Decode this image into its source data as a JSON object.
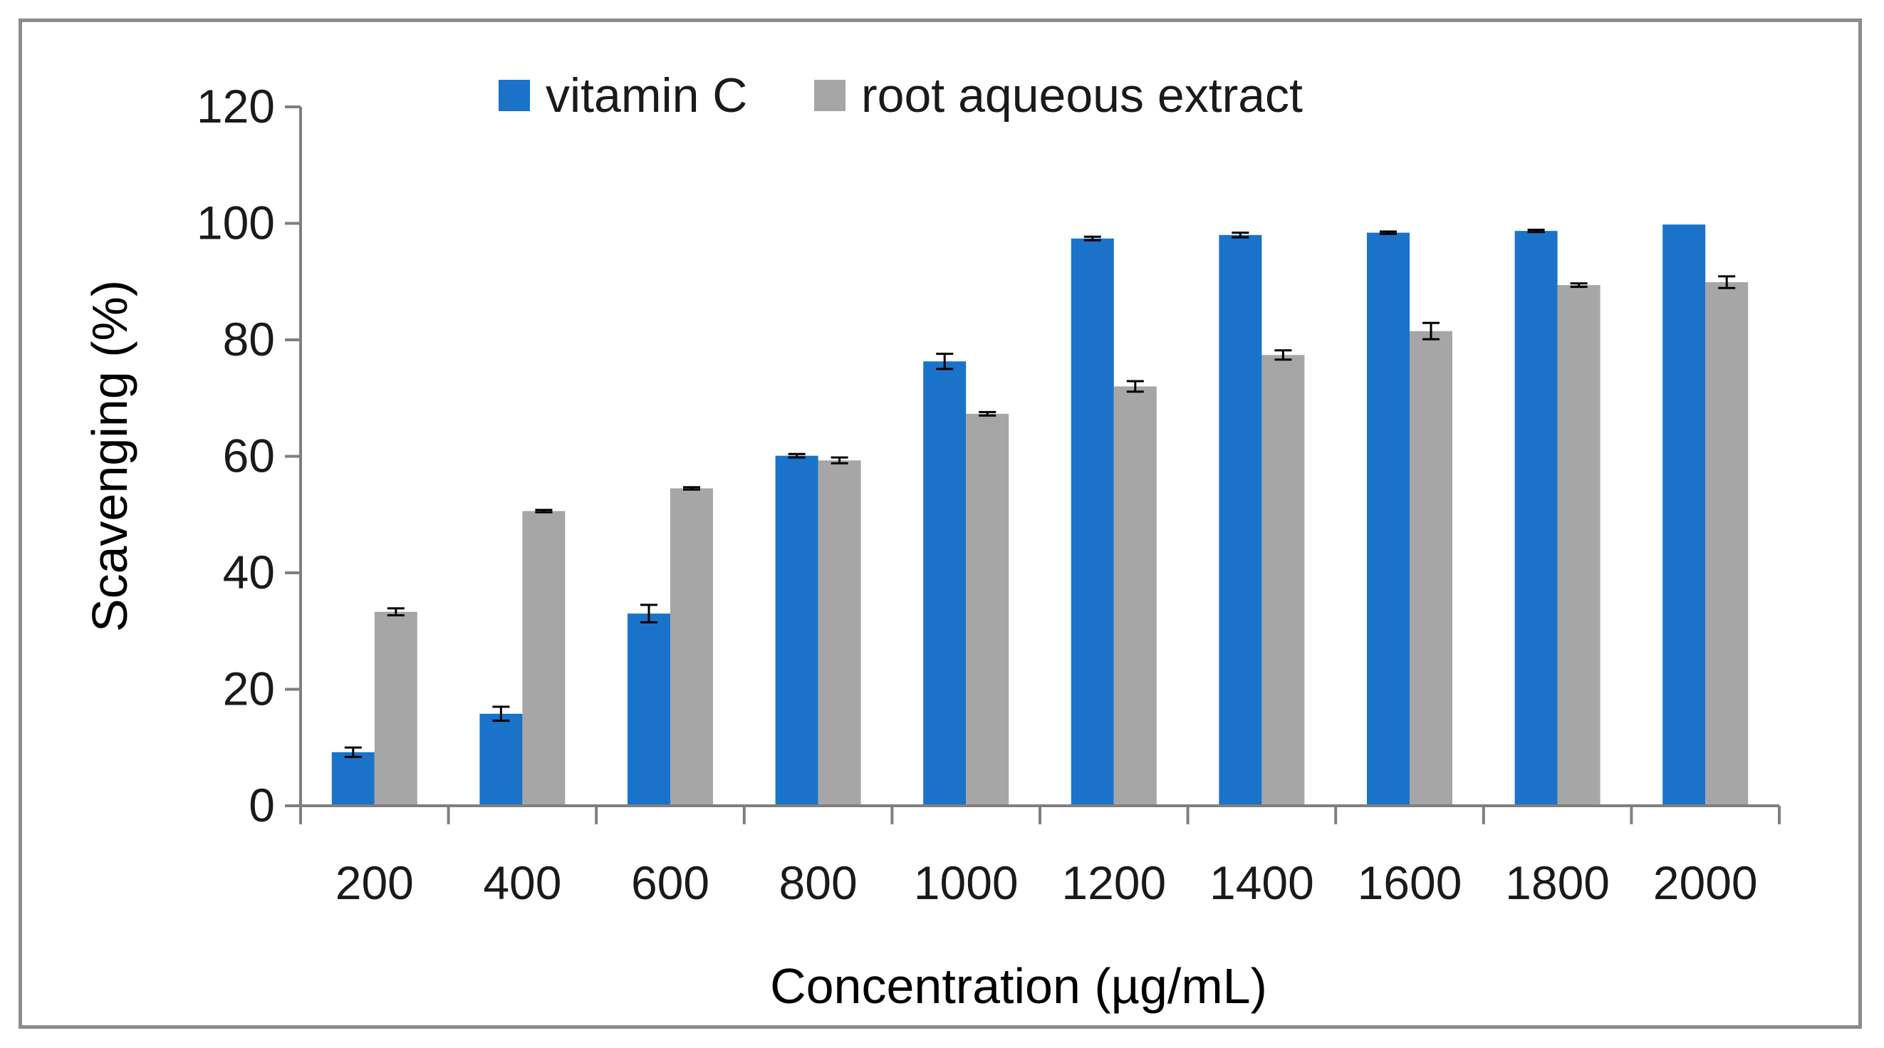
{
  "chart_data": {
    "type": "bar",
    "title": "",
    "xlabel": "Concentration (µg/mL)",
    "ylabel": "Scavenging (%)",
    "ylim": [
      0,
      120
    ],
    "yticks": [
      "0",
      "20",
      "40",
      "60",
      "80",
      "100",
      "120"
    ],
    "ytick_values": [
      0,
      20,
      40,
      60,
      80,
      100,
      120
    ],
    "categories": [
      "200",
      "400",
      "600",
      "800",
      "1000",
      "1200",
      "1400",
      "1600",
      "1800",
      "2000"
    ],
    "legend_position": "top",
    "grid": false,
    "series": [
      {
        "name": "vitamin C",
        "color": "#1a73c8",
        "values": [
          9.2,
          15.8,
          33.0,
          60.1,
          76.3,
          97.4,
          98.0,
          98.4,
          98.7,
          99.8
        ],
        "errors": [
          0.8,
          1.2,
          1.5,
          0.3,
          1.3,
          0.3,
          0.4,
          0.2,
          0.2,
          0.0
        ]
      },
      {
        "name": "root aqueous extract",
        "color": "#a6a6a6",
        "values": [
          33.3,
          50.6,
          54.5,
          59.3,
          67.3,
          72.0,
          77.4,
          81.5,
          89.4,
          89.9
        ],
        "errors": [
          0.6,
          0.2,
          0.2,
          0.5,
          0.3,
          0.9,
          0.8,
          1.4,
          0.3,
          1.0
        ]
      }
    ]
  }
}
